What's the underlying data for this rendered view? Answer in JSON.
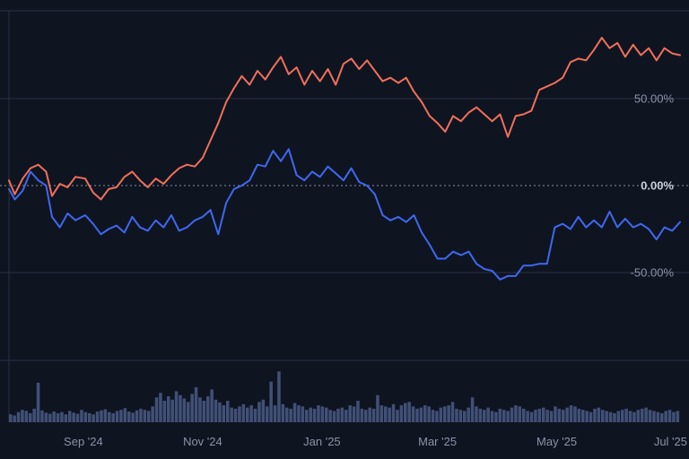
{
  "chart_data": {
    "type": "line",
    "y_unit": "%",
    "grid": true,
    "ylim": [
      -100,
      100
    ],
    "xlim": [
      "2024-07-25",
      "2025-07-03"
    ],
    "y_ticks": [
      "50.00%",
      "0.00%",
      "-50.00%"
    ],
    "y_tick_values": [
      50,
      0,
      -50
    ],
    "x_tick_labels": [
      "Sep '24",
      "Nov '24",
      "Jan '25",
      "Mar '25",
      "May '25",
      "Jul '25"
    ],
    "x_tick_dates": [
      "2024-09-01",
      "2024-11-01",
      "2025-01-01",
      "2025-03-01",
      "2025-05-01",
      "2025-07-01"
    ],
    "colors": {
      "background": "#0f1421",
      "grid": "#2a3142",
      "series_orange": "#f0705a",
      "series_blue": "#3f68f0",
      "volume": "#4a5a86",
      "zero_line": "#8a90a0"
    },
    "series": [
      {
        "color": "#f0705a",
        "points": [
          [
            "2024-07-25",
            3
          ],
          [
            "2024-07-28",
            -5
          ],
          [
            "2024-08-01",
            4
          ],
          [
            "2024-08-05",
            10
          ],
          [
            "2024-08-09",
            12
          ],
          [
            "2024-08-13",
            8
          ],
          [
            "2024-08-16",
            -6
          ],
          [
            "2024-08-20",
            1
          ],
          [
            "2024-08-24",
            -1
          ],
          [
            "2024-08-28",
            5
          ],
          [
            "2024-09-02",
            4
          ],
          [
            "2024-09-06",
            -4
          ],
          [
            "2024-09-10",
            -8
          ],
          [
            "2024-09-14",
            -2
          ],
          [
            "2024-09-18",
            -1
          ],
          [
            "2024-09-22",
            5
          ],
          [
            "2024-09-26",
            8
          ],
          [
            "2024-09-30",
            3
          ],
          [
            "2024-10-04",
            -1
          ],
          [
            "2024-10-08",
            4
          ],
          [
            "2024-10-12",
            1
          ],
          [
            "2024-10-16",
            6
          ],
          [
            "2024-10-20",
            10
          ],
          [
            "2024-10-24",
            12
          ],
          [
            "2024-10-28",
            11
          ],
          [
            "2024-11-01",
            16
          ],
          [
            "2024-11-05",
            26
          ],
          [
            "2024-11-09",
            36
          ],
          [
            "2024-11-13",
            48
          ],
          [
            "2024-11-17",
            56
          ],
          [
            "2024-11-21",
            63
          ],
          [
            "2024-11-25",
            58
          ],
          [
            "2024-11-29",
            66
          ],
          [
            "2024-12-03",
            61
          ],
          [
            "2024-12-07",
            68
          ],
          [
            "2024-12-11",
            74
          ],
          [
            "2024-12-15",
            64
          ],
          [
            "2024-12-19",
            68
          ],
          [
            "2024-12-23",
            58
          ],
          [
            "2024-12-27",
            66
          ],
          [
            "2024-12-31",
            60
          ],
          [
            "2025-01-04",
            67
          ],
          [
            "2025-01-08",
            58
          ],
          [
            "2025-01-12",
            70
          ],
          [
            "2025-01-16",
            73
          ],
          [
            "2025-01-20",
            67
          ],
          [
            "2025-01-24",
            72
          ],
          [
            "2025-01-28",
            66
          ],
          [
            "2025-02-01",
            60
          ],
          [
            "2025-02-05",
            62
          ],
          [
            "2025-02-09",
            59
          ],
          [
            "2025-02-13",
            62
          ],
          [
            "2025-02-17",
            54
          ],
          [
            "2025-02-21",
            48
          ],
          [
            "2025-02-25",
            40
          ],
          [
            "2025-03-01",
            36
          ],
          [
            "2025-03-05",
            31
          ],
          [
            "2025-03-09",
            40
          ],
          [
            "2025-03-13",
            37
          ],
          [
            "2025-03-17",
            42
          ],
          [
            "2025-03-21",
            45
          ],
          [
            "2025-03-25",
            41
          ],
          [
            "2025-03-29",
            37
          ],
          [
            "2025-04-02",
            41
          ],
          [
            "2025-04-06",
            28
          ],
          [
            "2025-04-10",
            40
          ],
          [
            "2025-04-14",
            41
          ],
          [
            "2025-04-18",
            43
          ],
          [
            "2025-04-22",
            55
          ],
          [
            "2025-04-26",
            57
          ],
          [
            "2025-04-30",
            59
          ],
          [
            "2025-05-04",
            62
          ],
          [
            "2025-05-08",
            71
          ],
          [
            "2025-05-12",
            73
          ],
          [
            "2025-05-16",
            72
          ],
          [
            "2025-05-20",
            78
          ],
          [
            "2025-05-24",
            85
          ],
          [
            "2025-05-28",
            79
          ],
          [
            "2025-06-01",
            82
          ],
          [
            "2025-06-05",
            74
          ],
          [
            "2025-06-09",
            81
          ],
          [
            "2025-06-13",
            75
          ],
          [
            "2025-06-17",
            79
          ],
          [
            "2025-06-21",
            72
          ],
          [
            "2025-06-25",
            79
          ],
          [
            "2025-06-29",
            76
          ],
          [
            "2025-07-03",
            75
          ]
        ]
      },
      {
        "color": "#3f68f0",
        "points": [
          [
            "2024-07-25",
            -2
          ],
          [
            "2024-07-28",
            -8
          ],
          [
            "2024-08-01",
            -3
          ],
          [
            "2024-08-05",
            8
          ],
          [
            "2024-08-09",
            3
          ],
          [
            "2024-08-13",
            0
          ],
          [
            "2024-08-16",
            -18
          ],
          [
            "2024-08-20",
            -24
          ],
          [
            "2024-08-24",
            -16
          ],
          [
            "2024-08-28",
            -20
          ],
          [
            "2024-09-02",
            -17
          ],
          [
            "2024-09-06",
            -22
          ],
          [
            "2024-09-10",
            -28
          ],
          [
            "2024-09-14",
            -25
          ],
          [
            "2024-09-18",
            -23
          ],
          [
            "2024-09-22",
            -27
          ],
          [
            "2024-09-26",
            -18
          ],
          [
            "2024-09-30",
            -24
          ],
          [
            "2024-10-04",
            -26
          ],
          [
            "2024-10-08",
            -20
          ],
          [
            "2024-10-12",
            -24
          ],
          [
            "2024-10-16",
            -17
          ],
          [
            "2024-10-20",
            -26
          ],
          [
            "2024-10-24",
            -24
          ],
          [
            "2024-10-28",
            -20
          ],
          [
            "2024-11-01",
            -18
          ],
          [
            "2024-11-05",
            -14
          ],
          [
            "2024-11-09",
            -28
          ],
          [
            "2024-11-13",
            -10
          ],
          [
            "2024-11-17",
            -2
          ],
          [
            "2024-11-21",
            0
          ],
          [
            "2024-11-25",
            3
          ],
          [
            "2024-11-29",
            12
          ],
          [
            "2024-12-03",
            11
          ],
          [
            "2024-12-07",
            20
          ],
          [
            "2024-12-11",
            14
          ],
          [
            "2024-12-15",
            21
          ],
          [
            "2024-12-19",
            6
          ],
          [
            "2024-12-23",
            3
          ],
          [
            "2024-12-27",
            8
          ],
          [
            "2024-12-31",
            5
          ],
          [
            "2025-01-04",
            11
          ],
          [
            "2025-01-08",
            7
          ],
          [
            "2025-01-12",
            3
          ],
          [
            "2025-01-16",
            10
          ],
          [
            "2025-01-20",
            2
          ],
          [
            "2025-01-24",
            0
          ],
          [
            "2025-01-28",
            -5
          ],
          [
            "2025-02-01",
            -17
          ],
          [
            "2025-02-05",
            -20
          ],
          [
            "2025-02-09",
            -18
          ],
          [
            "2025-02-13",
            -21
          ],
          [
            "2025-02-17",
            -17
          ],
          [
            "2025-02-21",
            -27
          ],
          [
            "2025-02-25",
            -34
          ],
          [
            "2025-03-01",
            -42
          ],
          [
            "2025-03-05",
            -42
          ],
          [
            "2025-03-09",
            -38
          ],
          [
            "2025-03-13",
            -40
          ],
          [
            "2025-03-17",
            -38
          ],
          [
            "2025-03-21",
            -45
          ],
          [
            "2025-03-25",
            -48
          ],
          [
            "2025-03-29",
            -49
          ],
          [
            "2025-04-02",
            -54
          ],
          [
            "2025-04-06",
            -52
          ],
          [
            "2025-04-10",
            -52
          ],
          [
            "2025-04-14",
            -46
          ],
          [
            "2025-04-18",
            -46
          ],
          [
            "2025-04-22",
            -45
          ],
          [
            "2025-04-26",
            -45
          ],
          [
            "2025-04-30",
            -24
          ],
          [
            "2025-05-04",
            -22
          ],
          [
            "2025-05-08",
            -25
          ],
          [
            "2025-05-12",
            -18
          ],
          [
            "2025-05-16",
            -24
          ],
          [
            "2025-05-20",
            -20
          ],
          [
            "2025-05-24",
            -24
          ],
          [
            "2025-05-28",
            -15
          ],
          [
            "2025-06-01",
            -24
          ],
          [
            "2025-06-05",
            -19
          ],
          [
            "2025-06-09",
            -24
          ],
          [
            "2025-06-13",
            -22
          ],
          [
            "2025-06-17",
            -25
          ],
          [
            "2025-06-21",
            -31
          ],
          [
            "2025-06-25",
            -24
          ],
          [
            "2025-06-29",
            -26
          ],
          [
            "2025-07-03",
            -21
          ]
        ]
      }
    ],
    "volume": {
      "color": "#4a5a86",
      "bars_per_series": 170,
      "max": 100,
      "values": [
        14,
        12,
        18,
        22,
        20,
        16,
        24,
        70,
        21,
        17,
        15,
        19,
        16,
        18,
        14,
        20,
        17,
        15,
        22,
        18,
        16,
        14,
        19,
        21,
        23,
        18,
        16,
        20,
        22,
        25,
        19,
        17,
        21,
        24,
        22,
        20,
        28,
        44,
        52,
        38,
        46,
        40,
        55,
        48,
        42,
        36,
        50,
        62,
        44,
        38,
        46,
        58,
        40,
        35,
        30,
        38,
        26,
        24,
        28,
        32,
        26,
        30,
        24,
        36,
        40,
        28,
        72,
        30,
        90,
        32,
        26,
        24,
        34,
        30,
        28,
        22,
        26,
        24,
        30,
        28,
        26,
        22,
        20,
        24,
        26,
        22,
        30,
        28,
        38,
        24,
        22,
        26,
        24,
        48,
        30,
        28,
        26,
        32,
        22,
        30,
        34,
        36,
        28,
        24,
        26,
        30,
        28,
        22,
        20,
        26,
        28,
        30,
        36,
        24,
        22,
        20,
        26,
        44,
        28,
        24,
        22,
        26,
        20,
        18,
        24,
        22,
        20,
        26,
        30,
        28,
        24,
        20,
        18,
        22,
        24,
        26,
        22,
        20,
        28,
        24,
        22,
        26,
        30,
        28,
        24,
        22,
        20,
        18,
        24,
        26,
        22,
        20,
        18,
        16,
        20,
        22,
        24,
        20,
        18,
        22,
        24,
        26,
        22,
        20,
        18,
        16,
        20,
        22,
        18,
        20
      ]
    }
  }
}
